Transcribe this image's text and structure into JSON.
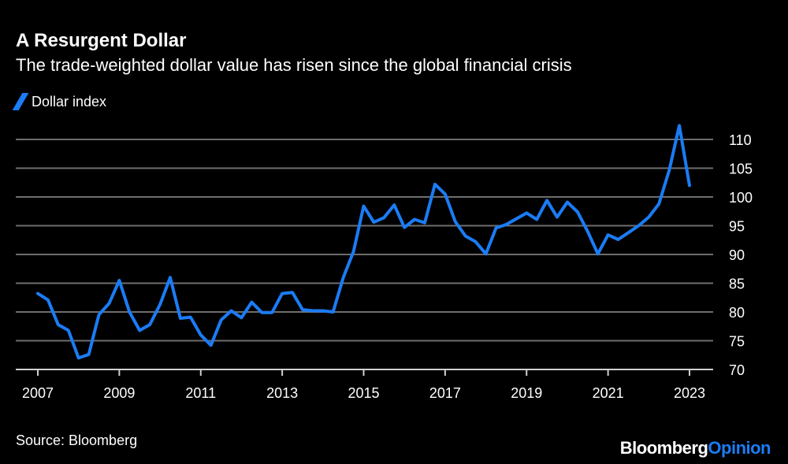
{
  "chart_data": {
    "type": "line",
    "title": "A Resurgent Dollar",
    "subtitle": "The trade-weighted dollar value has risen since the global financial crisis",
    "source": "Source: Bloomberg",
    "logo": {
      "brand": "Bloomberg",
      "suffix": "Opinion"
    },
    "x_start": 2007,
    "x_step": 0.25,
    "xlim": [
      2007,
      2023
    ],
    "ylim": [
      70,
      110
    ],
    "x_ticks": [
      "2007",
      "2009",
      "2011",
      "2013",
      "2015",
      "2017",
      "2019",
      "2021",
      "2023"
    ],
    "y_ticks": [
      "70",
      "75",
      "80",
      "85",
      "90",
      "95",
      "100",
      "105",
      "110"
    ],
    "y_axis_side": "right",
    "grid": true,
    "legend_placement": "top-left",
    "series": [
      {
        "name": "Dollar index",
        "color": "#1b7cf5",
        "values": [
          83.2,
          82.1,
          77.8,
          76.8,
          72.0,
          72.6,
          79.5,
          81.5,
          85.5,
          80.0,
          76.8,
          77.8,
          81.3,
          86.0,
          78.9,
          79.1,
          76.0,
          74.2,
          78.6,
          80.2,
          79.0,
          81.7,
          79.9,
          79.9,
          83.2,
          83.4,
          80.4,
          80.2,
          80.2,
          80.0,
          86.0,
          90.5,
          98.4,
          95.6,
          96.4,
          98.6,
          94.7,
          96.1,
          95.5,
          102.2,
          100.5,
          95.7,
          93.2,
          92.2,
          90.1,
          94.6,
          95.2,
          96.2,
          97.2,
          96.1,
          99.4,
          96.5,
          99.1,
          97.4,
          94.0,
          90.1,
          93.4,
          92.6,
          93.8,
          95.0,
          96.5,
          98.8,
          104.6,
          112.4,
          102.0
        ]
      }
    ]
  }
}
